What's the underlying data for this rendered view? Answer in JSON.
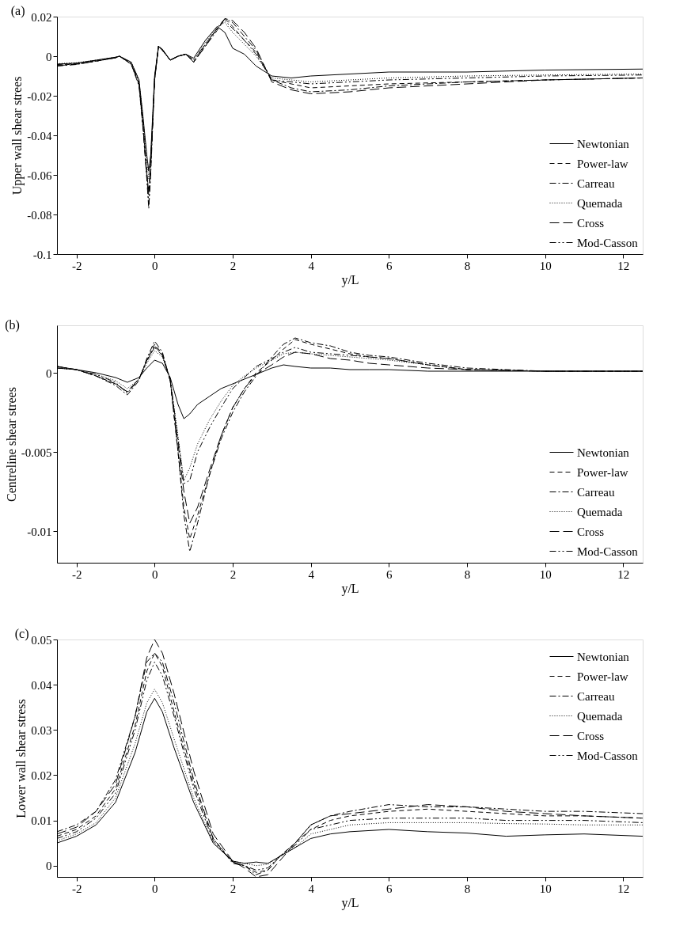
{
  "chart_data": [
    {
      "type": "line",
      "annotations": [
        "(a)"
      ],
      "xlabel": "y/L",
      "ylabel": "Upper wall shear strees",
      "xlim": [
        -2.5,
        12.5
      ],
      "xticks": [
        -2,
        0,
        2,
        4,
        6,
        8,
        10,
        12
      ],
      "ylim": [
        -0.1,
        0.02
      ],
      "yticks": [
        -0.1,
        -0.08,
        -0.06,
        -0.04,
        -0.02,
        0,
        0.02
      ],
      "grid": false,
      "legend": "bottom right",
      "series": [
        {
          "name": "Newtonian",
          "color": "#000000",
          "line_style": "solid",
          "x": [
            -2.5,
            -2,
            -1.5,
            -1,
            -0.9,
            -0.6,
            -0.4,
            -0.3,
            -0.2,
            -0.15,
            -0.1,
            0,
            0.1,
            0.2,
            0.4,
            0.6,
            0.8,
            1,
            1.3,
            1.6,
            1.8,
            2,
            2.3,
            2.6,
            3,
            3.5,
            4,
            5,
            6,
            8,
            10,
            12.5
          ],
          "values": [
            -0.004,
            -0.0035,
            -0.002,
            -0.0005,
            0,
            -0.003,
            -0.012,
            -0.03,
            -0.05,
            -0.058,
            -0.05,
            -0.01,
            0.005,
            0.0035,
            -0.002,
            0,
            0.001,
            -0.001,
            0.008,
            0.015,
            0.012,
            0.004,
            0.001,
            -0.005,
            -0.01,
            -0.011,
            -0.01,
            -0.009,
            -0.008,
            -0.008,
            -0.007,
            -0.0065
          ]
        },
        {
          "name": "Power-law",
          "color": "#000000",
          "line_style": "dashed",
          "x": [
            -2.5,
            -2,
            -1.5,
            -1,
            -0.9,
            -0.6,
            -0.4,
            -0.3,
            -0.2,
            -0.15,
            -0.1,
            0,
            0.1,
            0.2,
            0.4,
            0.6,
            0.8,
            1,
            1.3,
            1.6,
            1.8,
            2,
            2.3,
            2.6,
            3,
            3.5,
            4,
            5,
            6,
            8,
            10,
            12.5
          ],
          "values": [
            -0.0045,
            -0.004,
            -0.0025,
            -0.0008,
            0,
            -0.004,
            -0.014,
            -0.034,
            -0.058,
            -0.07,
            -0.055,
            -0.012,
            0.005,
            0.003,
            -0.002,
            0,
            0.001,
            -0.003,
            0.006,
            0.014,
            0.019,
            0.015,
            0.008,
            0.002,
            -0.012,
            -0.014,
            -0.016,
            -0.015,
            -0.014,
            -0.013,
            -0.012,
            -0.011
          ]
        },
        {
          "name": "Carreau",
          "color": "#000000",
          "line_style": "dashdot",
          "x": [
            -2.5,
            -2,
            -1.5,
            -1,
            -0.9,
            -0.6,
            -0.4,
            -0.3,
            -0.2,
            -0.15,
            -0.1,
            0,
            0.1,
            0.2,
            0.4,
            0.6,
            0.8,
            1,
            1.3,
            1.6,
            1.8,
            2,
            2.3,
            2.6,
            3,
            3.5,
            4,
            5,
            6,
            8,
            10,
            12.5
          ],
          "values": [
            -0.005,
            -0.0042,
            -0.0025,
            -0.0008,
            0,
            -0.004,
            -0.015,
            -0.036,
            -0.062,
            -0.077,
            -0.06,
            -0.012,
            0.005,
            0.003,
            -0.002,
            0,
            0.001,
            -0.003,
            0.005,
            0.013,
            0.019,
            0.017,
            0.01,
            0.003,
            -0.012,
            -0.016,
            -0.018,
            -0.017,
            -0.015,
            -0.013,
            -0.012,
            -0.011
          ]
        },
        {
          "name": "Quemada",
          "color": "#000000",
          "line_style": "dotted",
          "x": [
            -2.5,
            -2,
            -1.5,
            -1,
            -0.9,
            -0.6,
            -0.4,
            -0.3,
            -0.2,
            -0.15,
            -0.1,
            0,
            0.1,
            0.2,
            0.4,
            0.6,
            0.8,
            1,
            1.3,
            1.6,
            1.8,
            2,
            2.3,
            2.6,
            3,
            3.5,
            4,
            5,
            6,
            8,
            10,
            12.5
          ],
          "values": [
            -0.0038,
            -0.0033,
            -0.002,
            -0.0005,
            0,
            -0.003,
            -0.012,
            -0.031,
            -0.052,
            -0.062,
            -0.052,
            -0.011,
            0.005,
            0.0035,
            -0.002,
            0,
            0.001,
            -0.002,
            0.007,
            0.015,
            0.017,
            0.012,
            0.006,
            0,
            -0.011,
            -0.012,
            -0.013,
            -0.012,
            -0.011,
            -0.01,
            -0.0095,
            -0.009
          ]
        },
        {
          "name": "Cross",
          "color": "#000000",
          "line_style": "longdash",
          "x": [
            -2.5,
            -2,
            -1.5,
            -1,
            -0.9,
            -0.6,
            -0.4,
            -0.3,
            -0.2,
            -0.15,
            -0.1,
            0,
            0.1,
            0.2,
            0.4,
            0.6,
            0.8,
            1,
            1.3,
            1.6,
            1.8,
            2,
            2.3,
            2.6,
            3,
            3.5,
            4,
            5,
            6,
            8,
            10,
            12.5
          ],
          "values": [
            -0.0048,
            -0.004,
            -0.0025,
            -0.0008,
            0,
            -0.004,
            -0.014,
            -0.035,
            -0.06,
            -0.068,
            -0.055,
            -0.012,
            0.005,
            0.003,
            -0.002,
            0,
            0.001,
            -0.003,
            0.005,
            0.014,
            0.019,
            0.018,
            0.012,
            0.004,
            -0.013,
            -0.017,
            -0.019,
            -0.018,
            -0.016,
            -0.014,
            -0.012,
            -0.011
          ]
        },
        {
          "name": "Mod-Casson",
          "color": "#000000",
          "line_style": "dashdotdot",
          "x": [
            -2.5,
            -2,
            -1.5,
            -1,
            -0.9,
            -0.6,
            -0.4,
            -0.3,
            -0.2,
            -0.15,
            -0.1,
            0,
            0.1,
            0.2,
            0.4,
            0.6,
            0.8,
            1,
            1.3,
            1.6,
            1.8,
            2,
            2.3,
            2.6,
            3,
            3.5,
            4,
            5,
            6,
            8,
            10,
            12.5
          ],
          "values": [
            -0.0042,
            -0.0036,
            -0.0022,
            -0.0006,
            0,
            -0.0035,
            -0.013,
            -0.034,
            -0.06,
            -0.075,
            -0.057,
            -0.011,
            0.005,
            0.003,
            -0.002,
            0,
            0.001,
            -0.002,
            0.006,
            0.014,
            0.018,
            0.014,
            0.008,
            0.001,
            -0.012,
            -0.013,
            -0.014,
            -0.013,
            -0.012,
            -0.011,
            -0.01,
            -0.0095
          ]
        }
      ]
    },
    {
      "type": "line",
      "annotations": [
        "(b)"
      ],
      "xlabel": "y/L",
      "ylabel": "Centreline shear strees",
      "xlim": [
        -2.5,
        12.5
      ],
      "xticks": [
        -2,
        0,
        2,
        4,
        6,
        8,
        10,
        12
      ],
      "ylim": [
        -0.012,
        0.003
      ],
      "yticks": [
        -0.01,
        -0.005,
        0
      ],
      "grid": false,
      "legend": "bottom right",
      "series": [
        {
          "name": "Newtonian",
          "color": "#000000",
          "line_style": "solid",
          "x": [
            -2.5,
            -2,
            -1.5,
            -1,
            -0.7,
            -0.4,
            -0.2,
            0,
            0.2,
            0.4,
            0.6,
            0.75,
            0.9,
            1.1,
            1.4,
            1.7,
            2,
            2.3,
            2.6,
            3,
            3.3,
            3.6,
            4,
            4.5,
            5,
            5.5,
            6,
            7,
            8,
            10,
            12.5
          ],
          "values": [
            0.0003,
            0.0002,
            0,
            -0.0003,
            -0.0006,
            -0.0003,
            0.0003,
            0.0008,
            0.0006,
            -0.0003,
            -0.002,
            -0.0029,
            -0.0026,
            -0.002,
            -0.0015,
            -0.001,
            -0.0007,
            -0.0004,
            -0.0001,
            0.0003,
            0.0005,
            0.0004,
            0.0003,
            0.0003,
            0.0002,
            0.0002,
            0.0002,
            0.0001,
            0.0001,
            0.0001,
            0.0001
          ]
        },
        {
          "name": "Power-law",
          "color": "#000000",
          "line_style": "dashed",
          "x": [
            -2.5,
            -2,
            -1.5,
            -1,
            -0.7,
            -0.4,
            -0.2,
            0,
            0.2,
            0.4,
            0.6,
            0.75,
            0.9,
            1.1,
            1.4,
            1.7,
            2,
            2.3,
            2.6,
            3,
            3.3,
            3.6,
            4,
            4.5,
            5,
            5.5,
            6,
            7,
            8,
            10,
            12.5
          ],
          "values": [
            0.0004,
            0.0002,
            -0.0002,
            -0.0007,
            -0.0012,
            -0.0004,
            0.0008,
            0.0018,
            0.0012,
            -0.0005,
            -0.005,
            -0.0085,
            -0.0105,
            -0.009,
            -0.0065,
            -0.004,
            -0.0022,
            -0.001,
            0,
            0.0008,
            0.0015,
            0.0021,
            0.0018,
            0.0015,
            0.0012,
            0.001,
            0.0009,
            0.0005,
            0.0002,
            0.0001,
            0.0001
          ]
        },
        {
          "name": "Carreau",
          "color": "#000000",
          "line_style": "dashdot",
          "x": [
            -2.5,
            -2,
            -1.5,
            -1,
            -0.7,
            -0.4,
            -0.2,
            0,
            0.2,
            0.4,
            0.6,
            0.75,
            0.9,
            1.1,
            1.4,
            1.7,
            2,
            2.3,
            2.6,
            3,
            3.3,
            3.6,
            4,
            4.5,
            5,
            5.5,
            6,
            7,
            8,
            10,
            12.5
          ],
          "values": [
            0.0004,
            0.0002,
            -0.0002,
            -0.0008,
            -0.0014,
            -0.0005,
            0.0009,
            0.002,
            0.0013,
            -0.0005,
            -0.005,
            -0.009,
            -0.0113,
            -0.0095,
            -0.0065,
            -0.0042,
            -0.0025,
            -0.0012,
            -0.0002,
            0.001,
            0.0018,
            0.0022,
            0.0019,
            0.0017,
            0.0013,
            0.0011,
            0.001,
            0.0006,
            0.0003,
            0.0001,
            0.0001
          ]
        },
        {
          "name": "Quemada",
          "color": "#000000",
          "line_style": "dotted",
          "x": [
            -2.5,
            -2,
            -1.5,
            -1,
            -0.7,
            -0.4,
            -0.2,
            0,
            0.2,
            0.4,
            0.6,
            0.75,
            0.9,
            1.1,
            1.4,
            1.7,
            2,
            2.3,
            2.6,
            3,
            3.3,
            3.6,
            4,
            4.5,
            5,
            5.5,
            6,
            7,
            8,
            10,
            12.5
          ],
          "values": [
            0.0003,
            0.0002,
            -0.0001,
            -0.0005,
            -0.001,
            -0.0004,
            0.0006,
            0.0014,
            0.001,
            -0.0004,
            -0.004,
            -0.0068,
            -0.006,
            -0.0045,
            -0.003,
            -0.0018,
            -0.0008,
            -0.0002,
            0.0003,
            0.0008,
            0.0012,
            0.0013,
            0.0012,
            0.0011,
            0.001,
            0.0009,
            0.0008,
            0.0005,
            0.0002,
            0.0001,
            0.0001
          ]
        },
        {
          "name": "Cross",
          "color": "#000000",
          "line_style": "longdash",
          "x": [
            -2.5,
            -2,
            -1.5,
            -1,
            -0.7,
            -0.4,
            -0.2,
            0,
            0.2,
            0.4,
            0.6,
            0.75,
            0.9,
            1.1,
            1.4,
            1.7,
            2,
            2.3,
            2.6,
            3,
            3.3,
            3.6,
            4,
            4.5,
            5,
            5.5,
            6,
            7,
            8,
            10,
            12.5
          ],
          "values": [
            0.0004,
            0.0002,
            -0.0002,
            -0.0007,
            -0.0012,
            -0.0004,
            0.0008,
            0.0016,
            0.0011,
            -0.0005,
            -0.0045,
            -0.0075,
            -0.0095,
            -0.0085,
            -0.0062,
            -0.004,
            -0.0022,
            -0.001,
            -0.0001,
            0.0005,
            0.001,
            0.0013,
            0.0012,
            0.0009,
            0.0008,
            0.0006,
            0.0005,
            0.0003,
            0.0002,
            0.0001,
            0.0001
          ]
        },
        {
          "name": "Mod-Casson",
          "color": "#000000",
          "line_style": "dashdotdot",
          "x": [
            -2.5,
            -2,
            -1.5,
            -1,
            -0.7,
            -0.4,
            -0.2,
            0,
            0.2,
            0.4,
            0.6,
            0.75,
            0.9,
            1.1,
            1.4,
            1.7,
            2,
            2.3,
            2.6,
            3,
            3.3,
            3.6,
            4,
            4.5,
            5,
            5.5,
            6,
            7,
            8,
            10,
            12.5
          ],
          "values": [
            0.0003,
            0.0002,
            -0.0001,
            -0.0006,
            -0.0013,
            -0.0004,
            0.0007,
            0.0017,
            0.0011,
            -0.0004,
            -0.0042,
            -0.007,
            -0.0068,
            -0.005,
            -0.0035,
            -0.0022,
            -0.001,
            -0.0003,
            0.0004,
            0.0009,
            0.0013,
            0.0016,
            0.0013,
            0.0012,
            0.0011,
            0.001,
            0.0009,
            0.0005,
            0.0002,
            0.0001,
            0.0001
          ]
        }
      ]
    },
    {
      "type": "line",
      "annotations": [
        "(c)"
      ],
      "xlabel": "y/L",
      "ylabel": "Lower wall shear stress",
      "xlim": [
        -2.5,
        12.5
      ],
      "xticks": [
        -2,
        0,
        2,
        4,
        6,
        8,
        10,
        12
      ],
      "ylim": [
        -0.0025,
        0.05
      ],
      "yticks": [
        0,
        0.01,
        0.02,
        0.03,
        0.04,
        0.05
      ],
      "grid": false,
      "legend": "top right",
      "series": [
        {
          "name": "Newtonian",
          "color": "#000000",
          "line_style": "solid",
          "x": [
            -2.5,
            -2,
            -1.5,
            -1,
            -0.5,
            -0.2,
            0,
            0.2,
            0.5,
            1,
            1.5,
            2,
            2.3,
            2.6,
            2.9,
            3.2,
            3.6,
            4,
            4.5,
            5,
            6,
            7,
            8,
            9,
            10,
            11,
            12.5
          ],
          "values": [
            0.005,
            0.0065,
            0.009,
            0.014,
            0.025,
            0.034,
            0.037,
            0.034,
            0.026,
            0.014,
            0.005,
            0.001,
            0.0005,
            0.0008,
            0.0005,
            0.002,
            0.004,
            0.006,
            0.007,
            0.0075,
            0.008,
            0.0075,
            0.0072,
            0.0065,
            0.0068,
            0.007,
            0.0065
          ]
        },
        {
          "name": "Power-law",
          "color": "#000000",
          "line_style": "dashed",
          "x": [
            -2.5,
            -2,
            -1.5,
            -1,
            -0.5,
            -0.2,
            0,
            0.2,
            0.5,
            1,
            1.5,
            2,
            2.3,
            2.6,
            2.9,
            3.2,
            3.6,
            4,
            4.5,
            5,
            6,
            7,
            8,
            9,
            10,
            11,
            12.5
          ],
          "values": [
            0.0065,
            0.008,
            0.011,
            0.017,
            0.031,
            0.043,
            0.047,
            0.044,
            0.034,
            0.018,
            0.006,
            0.0008,
            0,
            -0.0015,
            -0.001,
            0.002,
            0.005,
            0.008,
            0.01,
            0.011,
            0.012,
            0.0125,
            0.012,
            0.0115,
            0.011,
            0.011,
            0.0105
          ]
        },
        {
          "name": "Carreau",
          "color": "#000000",
          "line_style": "dashdot",
          "x": [
            -2.5,
            -2,
            -1.5,
            -1,
            -0.5,
            -0.2,
            0,
            0.2,
            0.5,
            1,
            1.5,
            2,
            2.3,
            2.6,
            2.9,
            3.2,
            3.6,
            4,
            4.5,
            5,
            6,
            7,
            8,
            9,
            10,
            11,
            12.5
          ],
          "values": [
            0.0075,
            0.009,
            0.012,
            0.019,
            0.033,
            0.045,
            0.047,
            0.045,
            0.036,
            0.019,
            0.006,
            0.0005,
            0,
            -0.002,
            -0.001,
            0.002,
            0.005,
            0.009,
            0.011,
            0.012,
            0.0135,
            0.013,
            0.013,
            0.0125,
            0.012,
            0.012,
            0.0115
          ]
        },
        {
          "name": "Quemada",
          "color": "#000000",
          "line_style": "dotted",
          "x": [
            -2.5,
            -2,
            -1.5,
            -1,
            -0.5,
            -0.2,
            0,
            0.2,
            0.5,
            1,
            1.5,
            2,
            2.3,
            2.6,
            2.9,
            3.2,
            3.6,
            4,
            4.5,
            5,
            6,
            7,
            8,
            9,
            10,
            11,
            12.5
          ],
          "values": [
            0.0055,
            0.007,
            0.0095,
            0.015,
            0.027,
            0.036,
            0.039,
            0.036,
            0.028,
            0.015,
            0.005,
            0.001,
            0.0005,
            0,
            0.0003,
            0.002,
            0.004,
            0.007,
            0.008,
            0.009,
            0.0095,
            0.0095,
            0.0095,
            0.0093,
            0.0092,
            0.009,
            0.009
          ]
        },
        {
          "name": "Cross",
          "color": "#000000",
          "line_style": "longdash",
          "x": [
            -2.5,
            -2,
            -1.5,
            -1,
            -0.5,
            -0.2,
            0,
            0.2,
            0.5,
            1,
            1.5,
            2,
            2.3,
            2.6,
            2.9,
            3.2,
            3.6,
            4,
            4.5,
            5,
            6,
            7,
            8,
            9,
            10,
            11,
            12.5
          ],
          "values": [
            0.007,
            0.0085,
            0.012,
            0.018,
            0.033,
            0.046,
            0.05,
            0.047,
            0.038,
            0.021,
            0.007,
            0.001,
            -0.0005,
            -0.0025,
            -0.002,
            0.001,
            0.005,
            0.009,
            0.011,
            0.0115,
            0.0125,
            0.0135,
            0.013,
            0.012,
            0.0115,
            0.011,
            0.0105
          ]
        },
        {
          "name": "Mod-Casson",
          "color": "#000000",
          "line_style": "dashdotdot",
          "x": [
            -2.5,
            -2,
            -1.5,
            -1,
            -0.5,
            -0.2,
            0,
            0.2,
            0.5,
            1,
            1.5,
            2,
            2.3,
            2.6,
            2.9,
            3.2,
            3.6,
            4,
            4.5,
            5,
            6,
            7,
            8,
            9,
            10,
            11,
            12.5
          ],
          "values": [
            0.006,
            0.0075,
            0.0105,
            0.016,
            0.03,
            0.041,
            0.045,
            0.042,
            0.033,
            0.017,
            0.0055,
            0.0008,
            0,
            -0.001,
            -0.0005,
            0.002,
            0.0045,
            0.008,
            0.009,
            0.01,
            0.0105,
            0.0105,
            0.0105,
            0.01,
            0.01,
            0.01,
            0.0095
          ]
        }
      ]
    }
  ]
}
